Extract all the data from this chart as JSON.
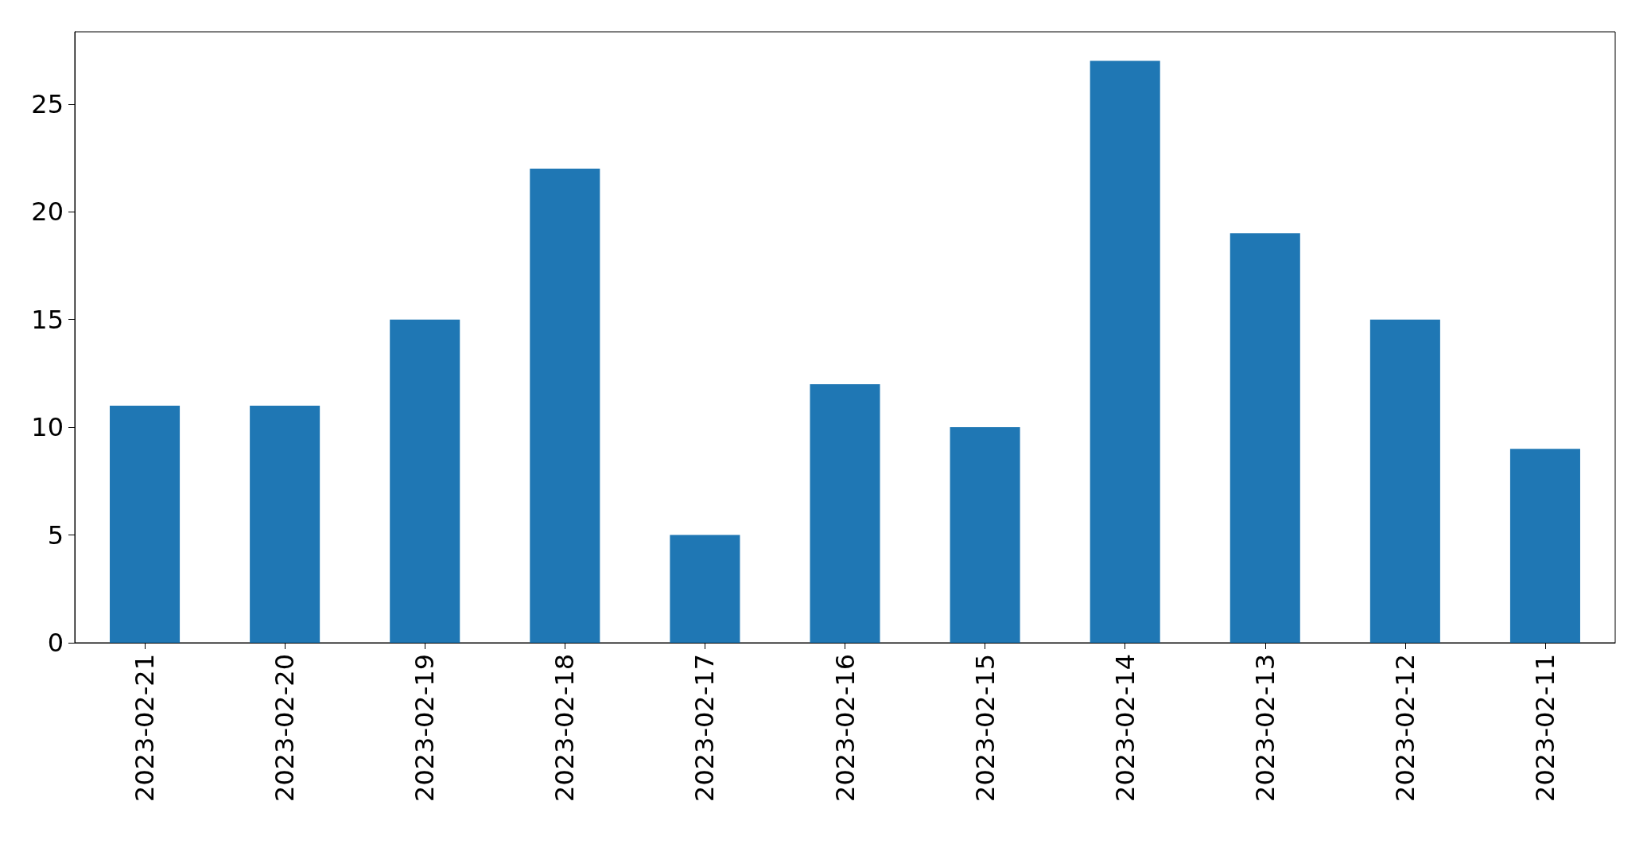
{
  "chart_data": {
    "type": "bar",
    "categories": [
      "2023-02-21",
      "2023-02-20",
      "2023-02-19",
      "2023-02-18",
      "2023-02-17",
      "2023-02-16",
      "2023-02-15",
      "2023-02-14",
      "2023-02-13",
      "2023-02-12",
      "2023-02-11"
    ],
    "values": [
      11,
      11,
      15,
      22,
      5,
      12,
      10,
      27,
      19,
      15,
      9
    ],
    "color": "#1f77b4",
    "ylim": [
      0,
      28.35
    ],
    "yticks": [
      0,
      5,
      10,
      15,
      20,
      25
    ],
    "grid": false
  }
}
